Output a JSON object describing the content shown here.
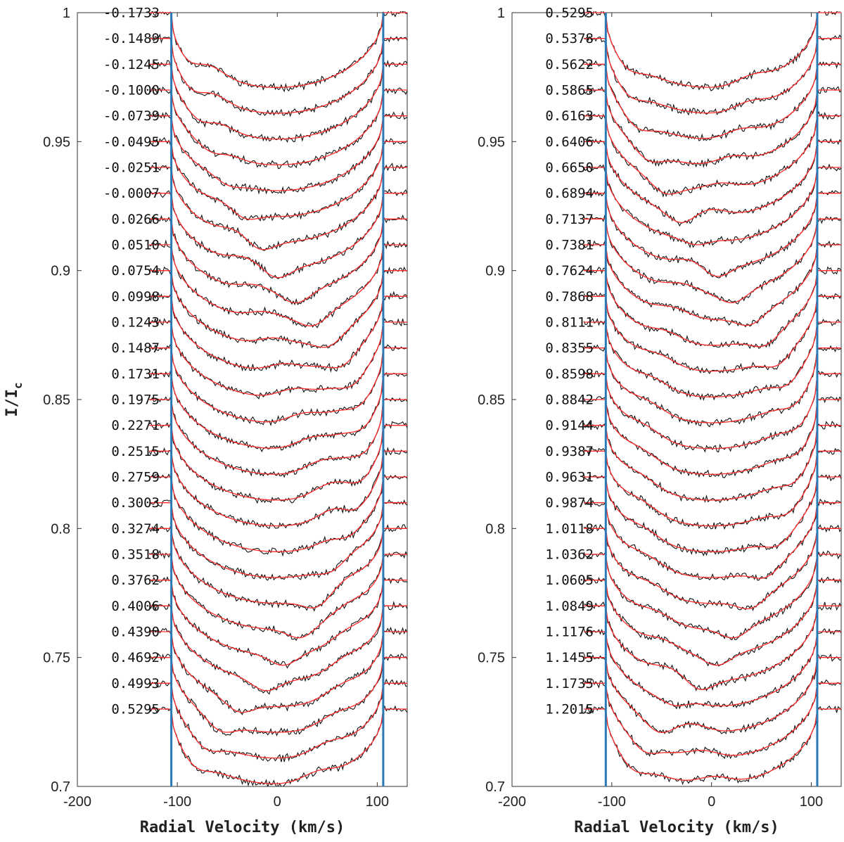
{
  "chart_data": [
    {
      "type": "line",
      "panel": "left",
      "xlabel": "Radial Velocity (km/s)",
      "ylabel": "I/I_c",
      "ylabel_main": "I/I",
      "ylabel_sub": "c",
      "xlim": [
        -200,
        130
      ],
      "ylim": [
        0.7,
        1.0
      ],
      "xticks": [
        -200,
        -100,
        0,
        100
      ],
      "xtick_labels": [
        "-200",
        "-100",
        "0",
        "100"
      ],
      "yticks": [
        1.0,
        0.95,
        0.9,
        0.85,
        0.8,
        0.75,
        0.7
      ],
      "ytick_labels": [
        "1",
        "0.95",
        "0.9",
        "0.85",
        "0.8",
        "0.75",
        "0.7"
      ],
      "vlines": [
        -106,
        106
      ],
      "vline_color": "#2a7ab8",
      "observed_color": "#111111",
      "model_color": "#ff2a2a",
      "profile_offset_step": 0.01,
      "profile_depth": 0.029,
      "vsini": 106,
      "phases": [
        "-0.1733",
        "-0.1489",
        "-0.1245",
        "-0.1000",
        "-0.0739",
        "-0.0495",
        "-0.0251",
        "-0.0007",
        "0.0266",
        "0.0510",
        "0.0754",
        "0.0998",
        "0.1243",
        "0.1487",
        "0.1731",
        "0.1975",
        "0.2271",
        "0.2515",
        "0.2759",
        "0.3003",
        "0.3274",
        "0.3518",
        "0.3762",
        "0.4006",
        "0.4390",
        "0.4692",
        "0.4993",
        "0.5295"
      ]
    },
    {
      "type": "line",
      "panel": "right",
      "xlabel": "Radial Velocity (km/s)",
      "ylabel": "",
      "xlim": [
        -200,
        130
      ],
      "ylim": [
        0.7,
        1.0
      ],
      "xticks": [
        -200,
        -100,
        0,
        100
      ],
      "xtick_labels": [
        "-200",
        "-100",
        "0",
        "100"
      ],
      "yticks": [
        1.0,
        0.95,
        0.9,
        0.85,
        0.8,
        0.75,
        0.7
      ],
      "ytick_labels": [
        "1",
        "0.95",
        "0.9",
        "0.85",
        "0.8",
        "0.75",
        "0.7"
      ],
      "vlines": [
        -106,
        106
      ],
      "vline_color": "#2a7ab8",
      "observed_color": "#111111",
      "model_color": "#ff2a2a",
      "profile_offset_step": 0.01,
      "profile_depth": 0.029,
      "vsini": 106,
      "phases": [
        "0.5295",
        "0.5378",
        "0.5622",
        "0.5865",
        "0.6163",
        "0.6406",
        "0.6650",
        "0.6894",
        "0.7137",
        "0.7381",
        "0.7624",
        "0.7868",
        "0.8111",
        "0.8355",
        "0.8598",
        "0.8842",
        "0.9144",
        "0.9387",
        "0.9631",
        "0.9874",
        "1.0118",
        "1.0362",
        "1.0605",
        "1.0849",
        "1.1176",
        "1.1455",
        "1.1735",
        "1.2015"
      ]
    }
  ]
}
